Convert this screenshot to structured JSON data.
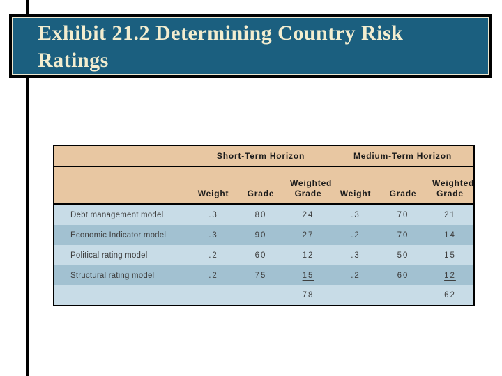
{
  "title": {
    "text": "Exhibit 21.2 Determining Country Risk Ratings",
    "background_color": "#1B5F7F",
    "text_color": "#F3EDCF",
    "border_color": "#000000",
    "inner_line_color": "#EFE9D1"
  },
  "table": {
    "group_headers": [
      "Short-Term Horizon",
      "Medium-Term Horizon"
    ],
    "col_headers": [
      "Weight",
      "Grade",
      "Weighted Grade",
      "Weight",
      "Grade",
      "Weighted Grade"
    ],
    "rows": [
      {
        "label": "Debt management model",
        "values": [
          ".3",
          "80",
          "24",
          ".3",
          "70",
          "21"
        ]
      },
      {
        "label": "Economic Indicator model",
        "values": [
          ".3",
          "90",
          "27",
          ".2",
          "70",
          "14"
        ]
      },
      {
        "label": "Political rating model",
        "values": [
          ".2",
          "60",
          "12",
          ".3",
          "50",
          "15"
        ]
      },
      {
        "label": "Structural rating model",
        "values": [
          ".2",
          "75",
          "15",
          ".2",
          "60",
          "12"
        ],
        "underlined_columns": [
          2,
          5
        ]
      }
    ],
    "totals": {
      "short_weighted_grade": "78",
      "medium_weighted_grade": "62"
    },
    "colors": {
      "header_bg": "#E8C7A2",
      "row_light": "#C8DCE7",
      "row_dark": "#A2C1D1",
      "border": "#000000"
    }
  }
}
